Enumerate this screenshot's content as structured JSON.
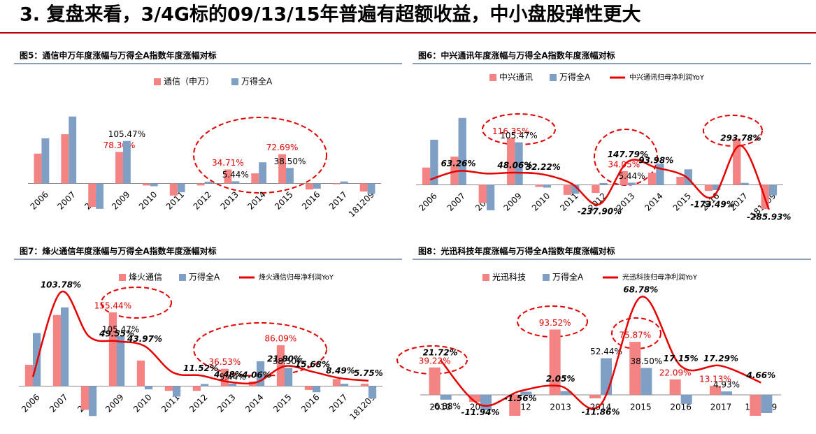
{
  "page_title": "3. 复盘来看，3/4G标的09/13/15年普遍有超额收益，中小盘股弹性更大",
  "chart_data": [
    {
      "type": "bar",
      "title": "图5：通信申万年度涨幅与万得全A指数年度涨幅对标",
      "categories": [
        "2006",
        "2007",
        "2008",
        "2009",
        "2010",
        "2011",
        "2012",
        "2013",
        "2014",
        "2015",
        "2016",
        "2017",
        "181209"
      ],
      "ylim": [
        -65,
        195
      ],
      "series": [
        {
          "name": "通信（申万）",
          "color": "#f48383",
          "values": [
            74,
            122,
            -58,
            78.3,
            -5,
            -30,
            -5,
            34.71,
            25,
            72.69,
            -15,
            -2,
            -20
          ],
          "value_labels": [
            null,
            null,
            null,
            "78.30%",
            null,
            null,
            null,
            "34.71%",
            null,
            "72.69%",
            null,
            null,
            null
          ]
        },
        {
          "name": "万得全A",
          "color": "#7f9fc4",
          "values": [
            112,
            166,
            -63,
            105.47,
            -6.88,
            -22,
            4.5,
            5.44,
            52.44,
            38.5,
            -12.9,
            4.93,
            -26
          ],
          "value_labels": [
            null,
            null,
            null,
            "105.47%",
            null,
            null,
            null,
            "5.44%",
            null,
            "38.50%",
            null,
            null,
            null
          ]
        }
      ]
    },
    {
      "type": "bar",
      "title": "图6：中兴通讯年度涨幅与万得全A指数年度涨幅对标",
      "categories": [
        "2006",
        "2007",
        "2008",
        "2009",
        "2010",
        "2011",
        "2012",
        "2013",
        "2014",
        "2015",
        "2016",
        "2017",
        "181209"
      ],
      "ylim": [
        -65,
        195
      ],
      "y2lim": [
        -300,
        650
      ],
      "series": [
        {
          "name": "中兴通讯",
          "color": "#f48383",
          "values": [
            43,
            70,
            -45,
            116.35,
            -5,
            -25,
            -20,
            34.05,
            30,
            20,
            -15,
            115,
            -60
          ],
          "value_labels": [
            null,
            null,
            null,
            "116.35%",
            null,
            null,
            null,
            "34.05%",
            null,
            null,
            null,
            null,
            null
          ]
        },
        {
          "name": "万得全A",
          "color": "#7f9fc4",
          "values": [
            112,
            166,
            -63,
            105.47,
            -6.88,
            -22,
            4.5,
            5.44,
            52.44,
            38.5,
            -12.9,
            4.93,
            -26
          ],
          "value_labels": [
            null,
            null,
            null,
            "105.47%",
            null,
            null,
            null,
            "5.44%",
            null,
            null,
            null,
            null,
            null
          ]
        },
        {
          "name": "中兴通讯归母净利润YoY",
          "type": "line",
          "axis": "y2",
          "color": "#e60000",
          "values": [
            -15,
            63.26,
            40,
            48.06,
            32.22,
            -50,
            -237.9,
            147.79,
            93.98,
            20,
            -173.49,
            293.78,
            -285.93
          ],
          "value_labels": [
            null,
            "63.26%",
            null,
            "48.06%",
            "32.22%",
            null,
            "-237.90%",
            "147.79%",
            "93.98%",
            null,
            "-173.49%",
            "293.78%",
            "-285.93%"
          ]
        }
      ]
    },
    {
      "type": "bar",
      "title": "图7：烽火通信年度涨幅与万得全A指数年度涨幅对标",
      "categories": [
        "2006",
        "2007",
        "2008",
        "2009",
        "2010",
        "2011",
        "2012",
        "2013",
        "2014",
        "2015",
        "2016",
        "2017",
        "181209"
      ],
      "ylim": [
        -70,
        210
      ],
      "y2lim": [
        -37,
        110
      ],
      "series": [
        {
          "name": "烽火通信",
          "color": "#f48383",
          "values": [
            45,
            150,
            -50,
            155.44,
            54,
            -10,
            -10,
            36.53,
            10,
            86.09,
            -8,
            15,
            5
          ],
          "value_labels": [
            null,
            null,
            null,
            "155.44%",
            null,
            null,
            null,
            "36.53%",
            null,
            "86.09%",
            null,
            null,
            null
          ]
        },
        {
          "name": "万得全A",
          "color": "#7f9fc4",
          "values": [
            112,
            166,
            -63,
            105.47,
            -6.88,
            -22,
            4.5,
            5.44,
            52.44,
            38.5,
            -12.9,
            4.93,
            -26
          ],
          "value_labels": [
            null,
            null,
            null,
            "105.47%",
            null,
            null,
            null,
            "5.44%",
            null,
            "38.50%",
            null,
            null,
            null
          ]
        },
        {
          "name": "烽火通信归母净利润YoY",
          "type": "line",
          "axis": "y2",
          "color": "#e60000",
          "values": [
            10,
            103.78,
            55,
            49.55,
            43.97,
            15,
            11.52,
            4.48,
            4.06,
            21.8,
            15.68,
            8.49,
            5.75
          ],
          "value_labels": [
            null,
            "103.78%",
            null,
            "49.55%",
            "43.97%",
            null,
            "11.52%",
            "4.48%",
            "4.06%",
            "21.80%",
            "15.68%",
            "8.49%",
            "5.75%"
          ]
        }
      ]
    },
    {
      "type": "bar",
      "title": "图8：光迅科技年度涨幅与万得全A指数年度涨幅对标",
      "categories": [
        "2010",
        "2011",
        "2012",
        "2013",
        "2014",
        "2015",
        "2016",
        "2017",
        "181209"
      ],
      "ylim": [
        -45,
        150
      ],
      "y2lim": [
        -28,
        74
      ],
      "series": [
        {
          "name": "光迅科技",
          "color": "#f48383",
          "values": [
            39.22,
            -10,
            -30,
            93.52,
            -5,
            75.87,
            22.09,
            13.13,
            -30
          ],
          "value_labels": [
            "39.22%",
            null,
            null,
            "93.52%",
            null,
            "75.87%",
            "22.09%",
            "13.13%",
            null
          ]
        },
        {
          "name": "万得全A",
          "color": "#7f9fc4",
          "values": [
            -6.88,
            -22,
            4.5,
            5.44,
            52.44,
            38.5,
            -12.9,
            4.93,
            -26
          ],
          "value_labels": [
            "-6.88%",
            null,
            null,
            null,
            "52.44%",
            "38.50%",
            null,
            "4.93%",
            null
          ]
        },
        {
          "name": "光迅科技归母净利润YoY",
          "type": "line",
          "axis": "y2",
          "color": "#e60000",
          "values": [
            21.72,
            -11.94,
            -1.56,
            2.05,
            -11.86,
            68.78,
            17.15,
            17.29,
            4.66
          ],
          "value_labels": [
            "21.72%",
            "-11.94%",
            "-1.56%",
            "2.05%",
            "-11.86%",
            "68.78%",
            "17.15%",
            "17.29%",
            "4.66%"
          ]
        }
      ]
    }
  ]
}
